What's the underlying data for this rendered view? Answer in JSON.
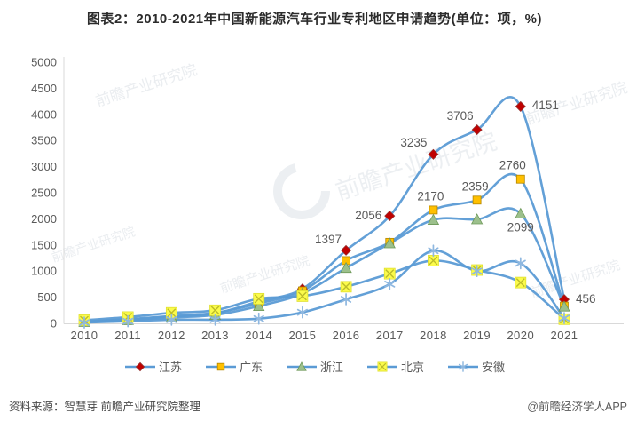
{
  "title": "图表2：2010-2021年中国新能源汽车行业专利地区申请趋势(单位：项，%)",
  "source": "资料来源：智慧芽 前瞻产业研究院整理",
  "credit": "@前瞻经济学人APP",
  "watermark": {
    "text": "前瞻产业研究院"
  },
  "chart_data": {
    "type": "line",
    "title": "图表2：2010-2021年中国新能源汽车行业专利地区申请趋势(单位：项，%)",
    "categories": [
      "2010",
      "2011",
      "2012",
      "2013",
      "2014",
      "2015",
      "2016",
      "2017",
      "2018",
      "2019",
      "2020",
      "2021"
    ],
    "y_ticks": [
      0,
      500,
      1000,
      1500,
      2000,
      2500,
      3000,
      3500,
      4000,
      4500,
      5000
    ],
    "ylim": [
      0,
      5000
    ],
    "grid": false,
    "legend_position": "bottom",
    "line_color": "#5B9BD5",
    "data_label_color": "#595959",
    "axis_color": "#D9D9D9",
    "tick_label_color": "#595959",
    "series": [
      {
        "id": "jiangsu",
        "name": "江苏",
        "marker": "diamond",
        "marker_color": "#C00000",
        "values": [
          30,
          70,
          130,
          190,
          420,
          660,
          1397,
          2056,
          3235,
          3706,
          4151,
          456
        ],
        "shown_labels": [
          {
            "category": "2016",
            "value": 1397
          },
          {
            "category": "2017",
            "value": 2056
          },
          {
            "category": "2018",
            "value": 3235
          },
          {
            "category": "2019",
            "value": 3706
          },
          {
            "category": "2020",
            "value": 4151
          },
          {
            "category": "2021",
            "value": 456
          }
        ]
      },
      {
        "id": "guangdong",
        "name": "广东",
        "marker": "square",
        "marker_color": "#FFC000",
        "values": [
          35,
          80,
          140,
          200,
          380,
          620,
          1200,
          1550,
          2170,
          2359,
          2760,
          330
        ],
        "shown_labels": [
          {
            "category": "2018",
            "value": 2170
          },
          {
            "category": "2019",
            "value": 2359
          },
          {
            "category": "2020",
            "value": 2760
          }
        ]
      },
      {
        "id": "zhejiang",
        "name": "浙江",
        "marker": "triangle",
        "marker_color": "#9CC08C",
        "values": [
          25,
          60,
          110,
          160,
          330,
          570,
          1060,
          1530,
          1980,
          1990,
          2099,
          320
        ],
        "shown_labels": [
          {
            "category": "2020",
            "value": 2099
          }
        ]
      },
      {
        "id": "beijing",
        "name": "北京",
        "marker": "xmark",
        "marker_color": "#FBFB4B",
        "values": [
          60,
          120,
          200,
          250,
          470,
          520,
          700,
          950,
          1200,
          1020,
          780,
          80
        ],
        "shown_labels": []
      },
      {
        "id": "anhui",
        "name": "安徽",
        "marker": "asterisk",
        "marker_color": "#8FB8E0",
        "values": [
          15,
          40,
          70,
          70,
          90,
          210,
          460,
          750,
          1390,
          1000,
          1150,
          100
        ],
        "shown_labels": []
      }
    ]
  }
}
